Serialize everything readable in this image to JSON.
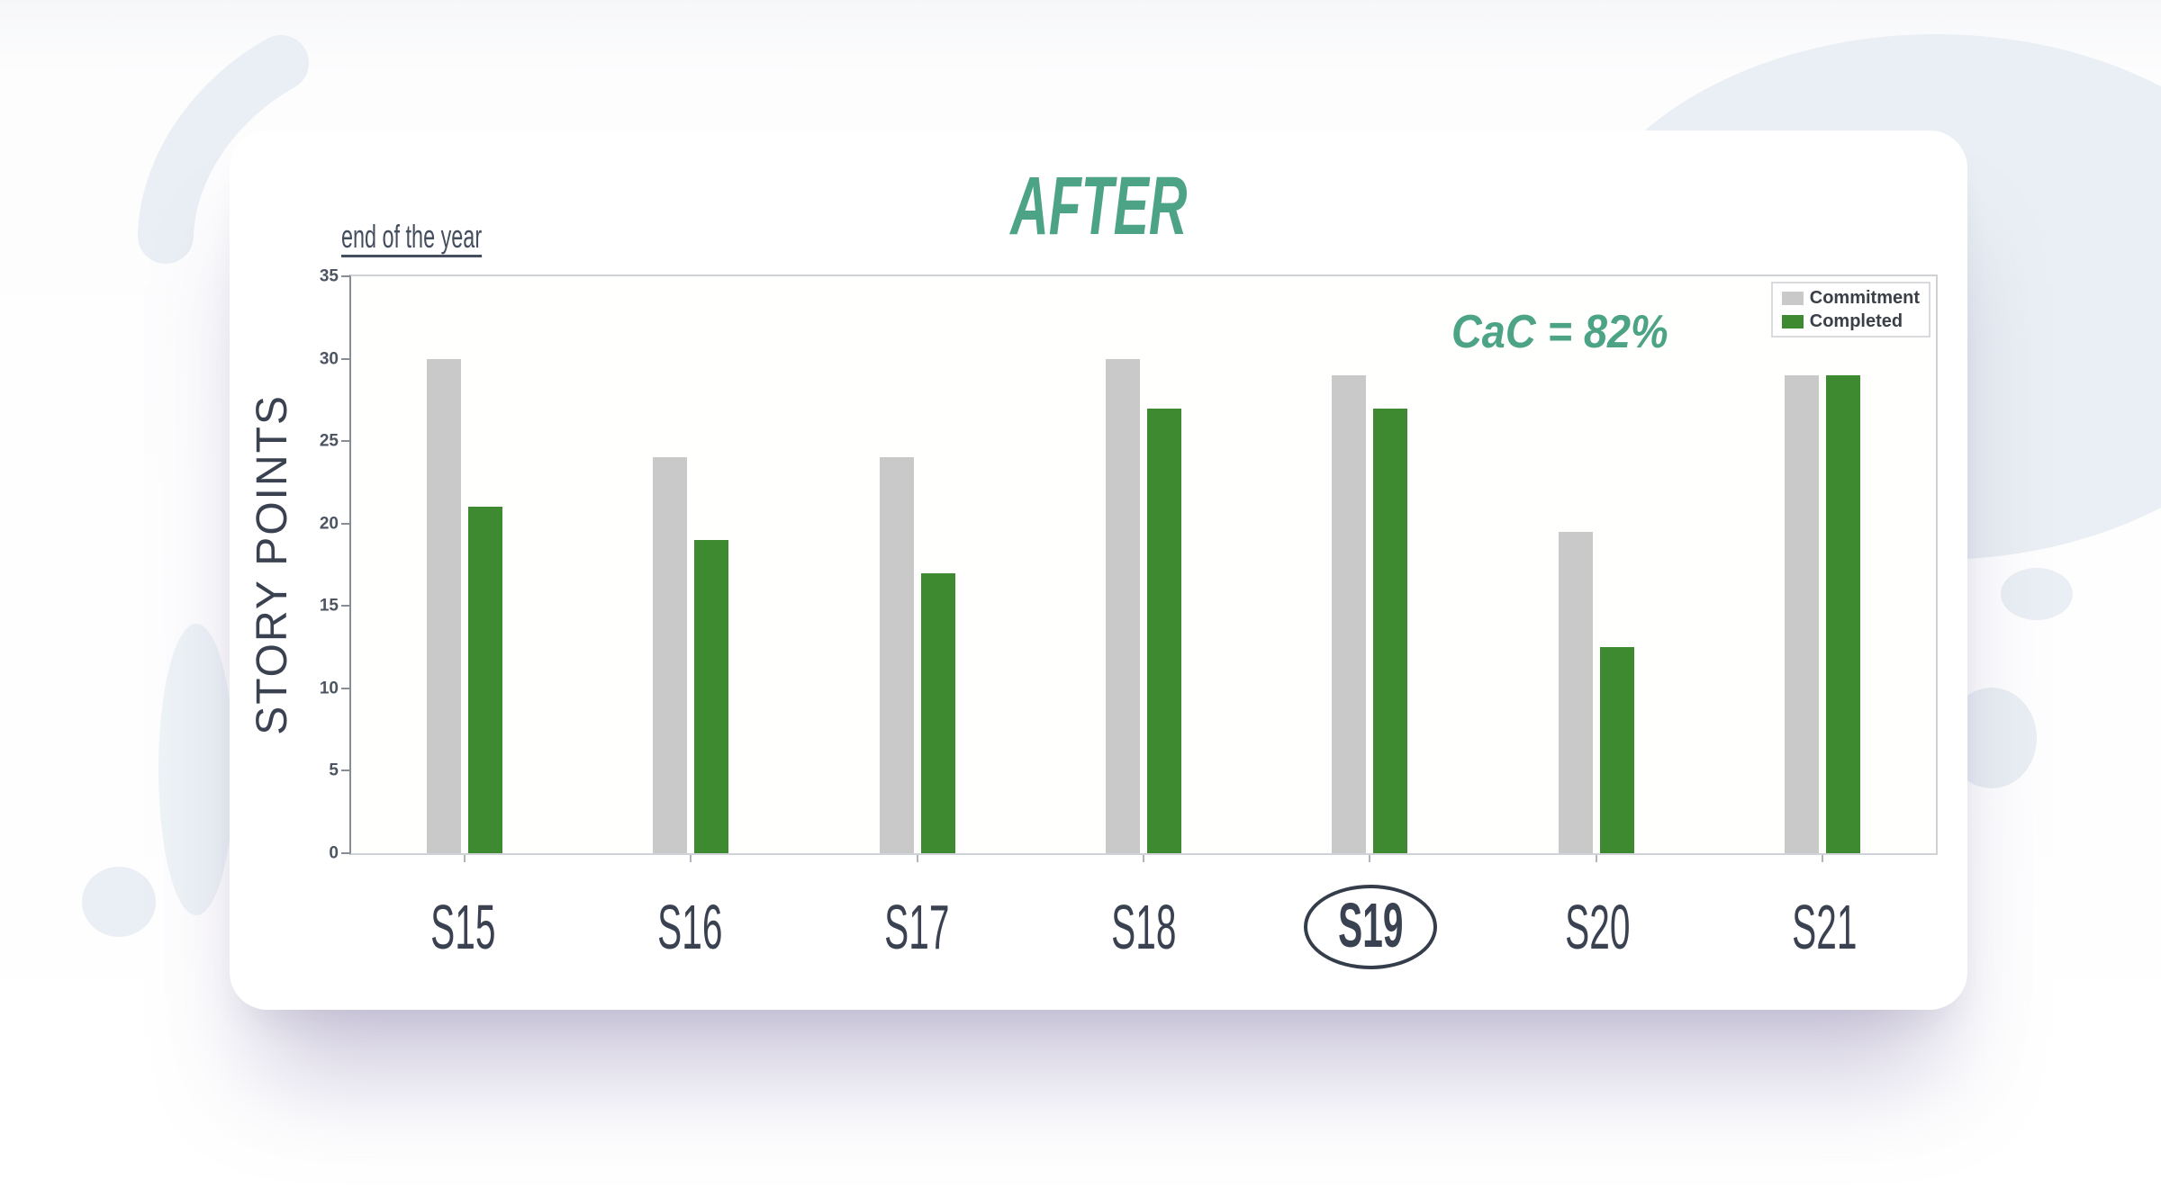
{
  "chart_data": {
    "type": "bar",
    "title": "AFTER",
    "subtitle": "end of the year",
    "annotation": "CaC = 82%",
    "ylabel": "STORY POINTS",
    "xlabel": "",
    "ylim": [
      0,
      35
    ],
    "yticks": [
      0,
      5,
      10,
      15,
      20,
      25,
      30,
      35
    ],
    "grid": false,
    "legend_position": "top-right-inside",
    "categories": [
      "S15",
      "S16",
      "S17",
      "S18",
      "S19",
      "S20",
      "S21"
    ],
    "highlighted_category": "S19",
    "series": [
      {
        "name": "Commitment",
        "color": "#c9c9c9",
        "values": [
          30,
          24,
          24,
          30,
          29,
          19.5,
          29
        ]
      },
      {
        "name": "Completed",
        "color": "#3d8a30",
        "values": [
          21,
          19,
          17,
          27,
          27,
          12.5,
          29
        ]
      }
    ]
  },
  "colors": {
    "accent_teal": "#4da386",
    "text_slate": "#3a4150",
    "tick_text": "#4d5462",
    "bar_gray": "#c9c9c9",
    "bar_green": "#3d8a30",
    "blob_blue": "#e9eff4"
  }
}
